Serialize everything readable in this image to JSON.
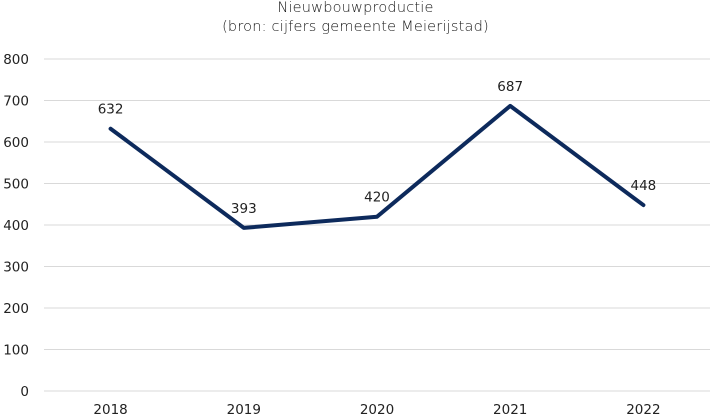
{
  "chart_data": {
    "type": "line",
    "title": "Nieuwbouwproductie",
    "subtitle": "(bron: cijfers gemeente Meierijstad)",
    "xlabel": "",
    "ylabel": "",
    "categories": [
      "2018",
      "2019",
      "2020",
      "2021",
      "2022"
    ],
    "series": [
      {
        "name": "Nieuwbouwproductie",
        "values": [
          632,
          393,
          420,
          687,
          448
        ],
        "color": "#0d2a5c"
      }
    ],
    "data_labels": [
      "632",
      "393",
      "420",
      "687",
      "448"
    ],
    "ylim": [
      0,
      800
    ],
    "yticks": [
      "0",
      "100",
      "200",
      "300",
      "400",
      "500",
      "600",
      "700",
      "800"
    ],
    "grid": true,
    "legend": "none"
  }
}
